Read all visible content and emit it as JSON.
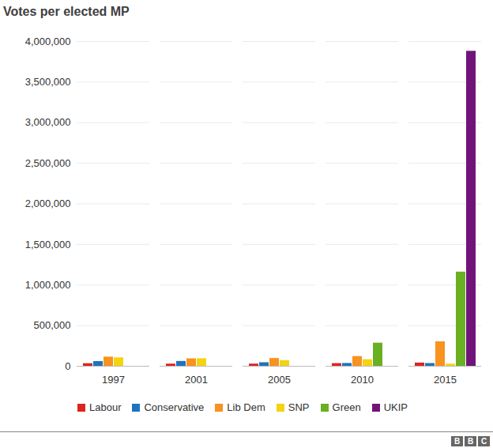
{
  "chart_data": {
    "type": "bar",
    "title": "Votes per elected MP",
    "categories": [
      "1997",
      "2001",
      "2005",
      "2010",
      "2015"
    ],
    "series": [
      {
        "name": "Labour",
        "color": "#dc241f",
        "values": [
          32000,
          27000,
          27000,
          33000,
          40000
        ]
      },
      {
        "name": "Conservative",
        "color": "#1e73be",
        "values": [
          58000,
          60000,
          44000,
          35000,
          34000
        ]
      },
      {
        "name": "Lib Dem",
        "color": "#f7931e",
        "values": [
          113000,
          92000,
          96000,
          120000,
          302000
        ]
      },
      {
        "name": "SNP",
        "color": "#f3d312",
        "values": [
          104000,
          93000,
          70000,
          81000,
          26000
        ]
      },
      {
        "name": "Green",
        "color": "#6ab023",
        "values": [
          null,
          null,
          null,
          285000,
          1160000
        ]
      },
      {
        "name": "UKIP",
        "color": "#70147a",
        "values": [
          null,
          null,
          null,
          null,
          3880000
        ]
      }
    ],
    "ylim": [
      0,
      4000000
    ],
    "yticks": [
      0,
      {
        "value": 500000,
        "label": "500,000"
      },
      {
        "value": 1000000,
        "label": "1,000,000"
      },
      {
        "value": 1500000,
        "label": "1,500,000"
      },
      {
        "value": 2000000,
        "label": "2,000,000"
      },
      {
        "value": 2500000,
        "label": "2,500,000"
      },
      {
        "value": 3000000,
        "label": "3,000,000"
      },
      {
        "value": 3500000,
        "label": "3,500,000"
      },
      {
        "value": 4000000,
        "label": "4,000,000"
      }
    ],
    "grid": true,
    "legend": "bottom",
    "annotations": [
      "B",
      "B",
      "C"
    ]
  }
}
